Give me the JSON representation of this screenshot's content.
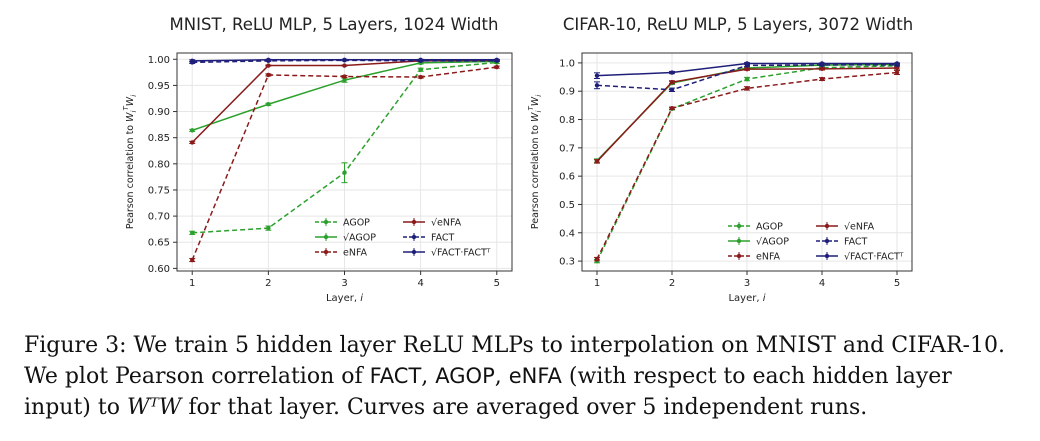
{
  "chart_data": [
    {
      "type": "line",
      "title": "MNIST, ReLU MLP, 5 Layers, 1024 Width",
      "xlabel": "Layer, i",
      "ylabel": "Pearson correlation to W_i^T W_i",
      "x": [
        1,
        2,
        3,
        4,
        5
      ],
      "xticks": [
        1,
        2,
        3,
        4,
        5
      ],
      "ylim": [
        0.595,
        1.012
      ],
      "yticks": [
        0.6,
        0.65,
        0.7,
        0.75,
        0.8,
        0.85,
        0.9,
        0.95,
        1.0
      ],
      "ytick_labels": [
        "0.60",
        "0.65",
        "0.70",
        "0.75",
        "0.80",
        "0.85",
        "0.90",
        "0.95",
        "1.00"
      ],
      "grid": true,
      "legend_position": "lower-right",
      "series": [
        {
          "name": "AGOP",
          "color": "#2ca02c",
          "dashed": true,
          "values": [
            0.668,
            0.677,
            0.783,
            0.98,
            0.994
          ],
          "errors": [
            0.003,
            0.004,
            0.019,
            0.003,
            0.002
          ]
        },
        {
          "name": "√AGOP",
          "color": "#2ca02c",
          "dashed": false,
          "values": [
            0.864,
            0.914,
            0.96,
            0.993,
            0.996
          ],
          "errors": [
            0.002,
            0.002,
            0.004,
            0.002,
            0.001
          ]
        },
        {
          "name": "eNFA",
          "color": "#8b1a1a",
          "dashed": true,
          "values": [
            0.616,
            0.97,
            0.967,
            0.966,
            0.985
          ],
          "errors": [
            0.003,
            0.002,
            0.002,
            0.002,
            0.002
          ]
        },
        {
          "name": "√eNFA",
          "color": "#8b1a1a",
          "dashed": false,
          "values": [
            0.841,
            0.988,
            0.988,
            0.997,
            0.998
          ],
          "errors": [
            0.002,
            0.001,
            0.001,
            0.001,
            0.001
          ]
        },
        {
          "name": "FACT",
          "color": "#1f1f7a",
          "dashed": true,
          "values": [
            0.994,
            0.997,
            0.998,
            0.997,
            0.997
          ],
          "errors": [
            0.002,
            0.001,
            0.001,
            0.001,
            0.001
          ]
        },
        {
          "name": "√FACT·FACTᵀ",
          "color": "#1f1f7a",
          "dashed": false,
          "values": [
            0.997,
            0.999,
            0.999,
            0.999,
            0.999
          ],
          "errors": [
            0.002,
            0.001,
            0.001,
            0.001,
            0.001
          ]
        }
      ]
    },
    {
      "type": "line",
      "title": "CIFAR-10, ReLU MLP, 5 Layers, 3072 Width",
      "xlabel": "Layer, i",
      "ylabel": "Pearson correlation to W_i^T W_i",
      "x": [
        1,
        2,
        3,
        4,
        5
      ],
      "xticks": [
        1,
        2,
        3,
        4,
        5
      ],
      "ylim": [
        0.265,
        1.035
      ],
      "yticks": [
        0.3,
        0.4,
        0.5,
        0.6,
        0.7,
        0.8,
        0.9,
        1.0
      ],
      "ytick_labels": [
        "0.3",
        "0.4",
        "0.5",
        "0.6",
        "0.7",
        "0.8",
        "0.9",
        "1.0"
      ],
      "grid": true,
      "legend_position": "lower-right",
      "series": [
        {
          "name": "AGOP",
          "color": "#2ca02c",
          "dashed": true,
          "values": [
            0.3,
            0.838,
            0.943,
            0.983,
            0.99
          ],
          "errors": [
            0.006,
            0.004,
            0.006,
            0.005,
            0.004
          ]
        },
        {
          "name": "√AGOP",
          "color": "#2ca02c",
          "dashed": false,
          "values": [
            0.655,
            0.929,
            0.982,
            0.992,
            0.995
          ],
          "errors": [
            0.006,
            0.005,
            0.004,
            0.003,
            0.003
          ]
        },
        {
          "name": "eNFA",
          "color": "#8b1a1a",
          "dashed": true,
          "values": [
            0.307,
            0.84,
            0.91,
            0.943,
            0.966
          ],
          "errors": [
            0.006,
            0.004,
            0.006,
            0.005,
            0.007
          ]
        },
        {
          "name": "√eNFA",
          "color": "#8b1a1a",
          "dashed": false,
          "values": [
            0.652,
            0.932,
            0.978,
            0.979,
            0.982
          ],
          "errors": [
            0.006,
            0.005,
            0.004,
            0.004,
            0.004
          ]
        },
        {
          "name": "FACT",
          "color": "#1f1f7a",
          "dashed": true,
          "values": [
            0.921,
            0.905,
            0.991,
            0.993,
            0.993
          ],
          "errors": [
            0.012,
            0.006,
            0.004,
            0.003,
            0.003
          ]
        },
        {
          "name": "√FACT·FACTᵀ",
          "color": "#1f1f7a",
          "dashed": false,
          "values": [
            0.955,
            0.966,
            0.998,
            0.998,
            0.998
          ],
          "errors": [
            0.01,
            0.004,
            0.003,
            0.002,
            0.002
          ]
        }
      ]
    }
  ],
  "caption": {
    "prefix": "Figure 3: We train 5 hidden layer ReLU MLPs to interpolation on MNIST and CIFAR-10. We plot Pearson correlation of ",
    "fact": "FACT",
    "sep1": ", ",
    "agop": "AGOP",
    "sep2": ", ",
    "enfa": "eNFA",
    "mid": " (with respect to each hidden layer input) to ",
    "math": "WᵀW",
    "suffix": " for that layer. Curves are averaged over 5 independent runs."
  }
}
